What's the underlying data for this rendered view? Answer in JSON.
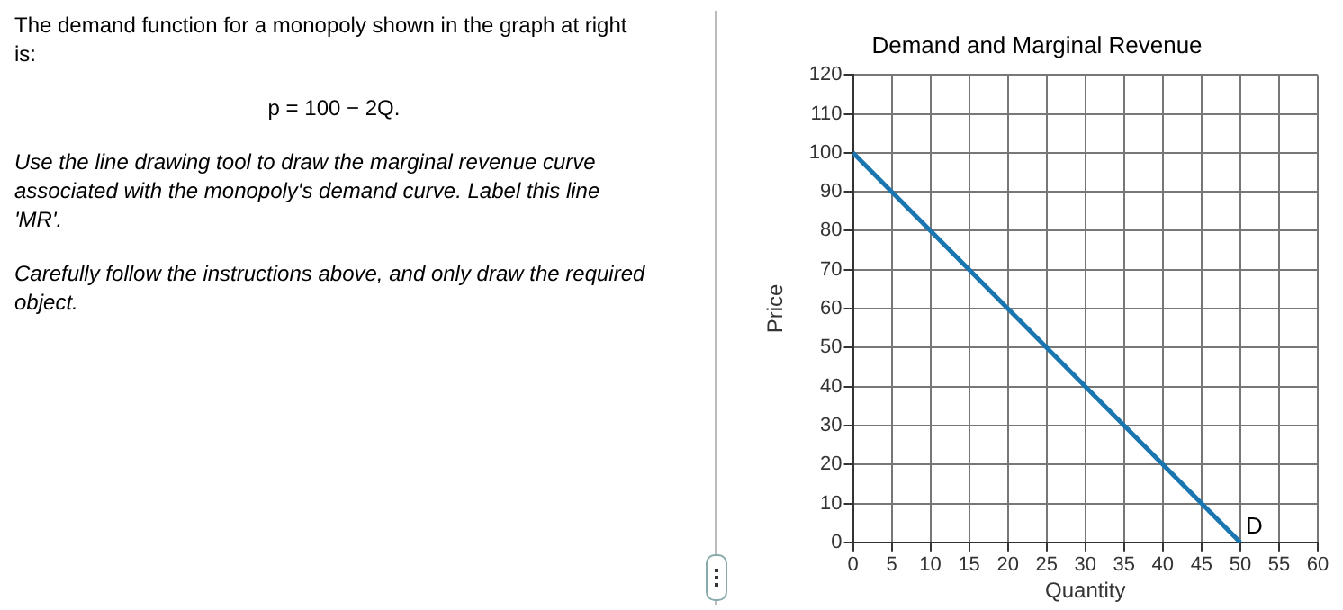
{
  "chart_data": {
    "type": "line",
    "title": "Demand and Marginal Revenue",
    "xlabel": "Quantity",
    "ylabel": "Price",
    "x": [
      0,
      50
    ],
    "series": [
      {
        "name": "D",
        "color": "#1a76b0",
        "values": [
          100,
          0
        ]
      }
    ],
    "xlim": [
      0,
      60
    ],
    "xticks": [
      0,
      5,
      10,
      15,
      20,
      25,
      30,
      35,
      40,
      45,
      50,
      55,
      60
    ],
    "ylim": [
      0,
      120
    ],
    "yticks": [
      0,
      10,
      20,
      30,
      40,
      50,
      60,
      70,
      80,
      90,
      100,
      110,
      120
    ],
    "grid": true,
    "legend": false,
    "marker": "none",
    "line_style": "solid",
    "annotations": [
      "The demand function for a monopoly shown in the graph at right is:",
      "p = 100 − 2Q.",
      "Use the line drawing tool to draw the marginal revenue curve associated with the monopoly's demand curve. Label this line 'MR'.",
      "Carefully follow the instructions above, and only draw the required object."
    ]
  }
}
